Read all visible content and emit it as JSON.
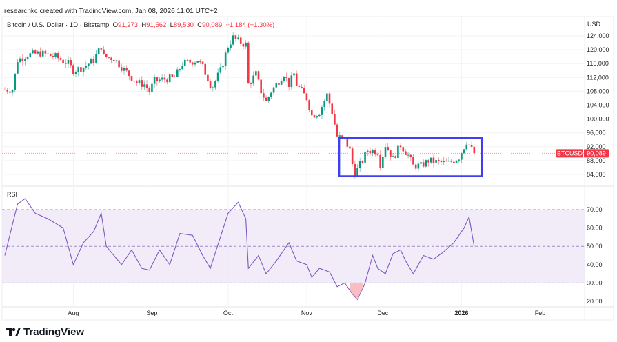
{
  "header": {
    "credit": "researchkc created with TradingView.com, Jan 08, 2026 11:01 UTC+2"
  },
  "legend": {
    "symbol": "Bitcoin / U.S. Dollar · 1D · Bitstamp",
    "o_label": "O",
    "o": "91,273",
    "h_label": "H",
    "h": "91,562",
    "l_label": "L",
    "l": "89,530",
    "c_label": "C",
    "c": "90,089",
    "change": "−1,184 (−1.30%)"
  },
  "price_axis": {
    "currency": "USD",
    "ticks": [
      "124,000",
      "120,000",
      "116,000",
      "112,000",
      "108,000",
      "104,000",
      "100,000",
      "96,000",
      "92,000",
      "88,000",
      "84,000"
    ],
    "tick_values": [
      124,
      120,
      116,
      112,
      108,
      104,
      100,
      96,
      92,
      88,
      84
    ],
    "badge_symbol": "BTCUSD",
    "badge_price": "90,089",
    "last": 90.089
  },
  "rsi": {
    "label": "RSI",
    "ticks": [
      "70.00",
      "60.00",
      "50.00",
      "40.00",
      "30.00",
      "20.00"
    ],
    "tick_values": [
      70,
      60,
      50,
      40,
      30,
      20
    ]
  },
  "time_axis": {
    "labels": [
      "Aug",
      "Sep",
      "Oct",
      "Nov",
      "Dec",
      "2026",
      "Feb"
    ],
    "days": [
      27,
      58,
      88,
      119,
      149,
      180,
      211
    ]
  },
  "colors": {
    "up": "#089981",
    "down": "#f23645",
    "rsi_line": "#7e57c2",
    "rsi_fill": "#ede7f6",
    "box": "#3f3ff0"
  },
  "brand": "TradingView",
  "chart_data": {
    "type": "candlestick",
    "start_date": "2025-07-05",
    "unit": "USD thousands",
    "close_keypoints": [
      [
        0,
        108.5
      ],
      [
        3,
        108.5
      ],
      [
        5,
        117
      ],
      [
        9,
        118.5
      ],
      [
        14,
        119
      ],
      [
        20,
        118
      ],
      [
        25,
        116
      ],
      [
        27,
        114
      ],
      [
        31,
        115
      ],
      [
        35,
        117
      ],
      [
        38,
        121
      ],
      [
        39,
        118
      ],
      [
        43,
        117.5
      ],
      [
        46,
        115
      ],
      [
        50,
        112
      ],
      [
        52,
        110.5
      ],
      [
        55,
        110
      ],
      [
        57,
        108
      ],
      [
        59,
        111
      ],
      [
        63,
        111.5
      ],
      [
        67,
        112
      ],
      [
        70,
        116
      ],
      [
        76,
        117
      ],
      [
        78,
        115
      ],
      [
        81,
        110
      ],
      [
        82,
        109.5
      ],
      [
        85,
        114
      ],
      [
        88,
        121
      ],
      [
        90,
        123.5
      ],
      [
        93,
        122
      ],
      [
        95,
        121.5
      ],
      [
        96,
        110
      ],
      [
        99,
        113
      ],
      [
        101,
        108
      ],
      [
        103,
        105
      ],
      [
        105,
        108
      ],
      [
        110,
        113
      ],
      [
        112,
        110
      ],
      [
        114,
        113
      ],
      [
        115,
        110
      ],
      [
        119,
        106
      ],
      [
        121,
        101
      ],
      [
        124,
        102
      ],
      [
        127,
        107
      ],
      [
        129,
        102
      ],
      [
        131,
        95
      ],
      [
        134,
        94
      ],
      [
        136,
        91
      ],
      [
        137,
        87
      ],
      [
        138,
        84.5
      ],
      [
        139,
        85.5
      ],
      [
        141,
        88
      ],
      [
        143,
        91
      ],
      [
        147,
        90.5
      ],
      [
        148,
        87
      ],
      [
        150,
        92.5
      ],
      [
        153,
        88.5
      ],
      [
        156,
        92.5
      ],
      [
        159,
        89.5
      ],
      [
        161,
        86.5
      ],
      [
        164,
        86.5
      ],
      [
        167,
        88
      ],
      [
        171,
        87.5
      ],
      [
        175,
        87.3
      ],
      [
        179,
        89
      ],
      [
        182,
        93.5
      ],
      [
        185,
        90.089
      ]
    ],
    "rsi_keypoints": [
      [
        0,
        45
      ],
      [
        5,
        73
      ],
      [
        8,
        76
      ],
      [
        12,
        68
      ],
      [
        17,
        65
      ],
      [
        23,
        60
      ],
      [
        27,
        40
      ],
      [
        31,
        52
      ],
      [
        35,
        58
      ],
      [
        38,
        68
      ],
      [
        40,
        50
      ],
      [
        46,
        40
      ],
      [
        50,
        48
      ],
      [
        54,
        38
      ],
      [
        57,
        37
      ],
      [
        61,
        48
      ],
      [
        65,
        40
      ],
      [
        69,
        57
      ],
      [
        74,
        56
      ],
      [
        78,
        45
      ],
      [
        81,
        38
      ],
      [
        88,
        68
      ],
      [
        92,
        74
      ],
      [
        95,
        65
      ],
      [
        96,
        38
      ],
      [
        100,
        45
      ],
      [
        103,
        35
      ],
      [
        107,
        42
      ],
      [
        112,
        52
      ],
      [
        115,
        42
      ],
      [
        119,
        40
      ],
      [
        121,
        33
      ],
      [
        124,
        38
      ],
      [
        128,
        36
      ],
      [
        131,
        28
      ],
      [
        134,
        30
      ],
      [
        137,
        24
      ],
      [
        139,
        21
      ],
      [
        142,
        30
      ],
      [
        145,
        45
      ],
      [
        147,
        38
      ],
      [
        150,
        35
      ],
      [
        153,
        46
      ],
      [
        156,
        48
      ],
      [
        158,
        42
      ],
      [
        161,
        35
      ],
      [
        165,
        45
      ],
      [
        169,
        43
      ],
      [
        173,
        47
      ],
      [
        177,
        52
      ],
      [
        181,
        60
      ],
      [
        183,
        66
      ],
      [
        185,
        50
      ]
    ],
    "range_box": {
      "day_start": 134,
      "day_end": 188,
      "high": 94.5,
      "low": 83.5
    }
  }
}
